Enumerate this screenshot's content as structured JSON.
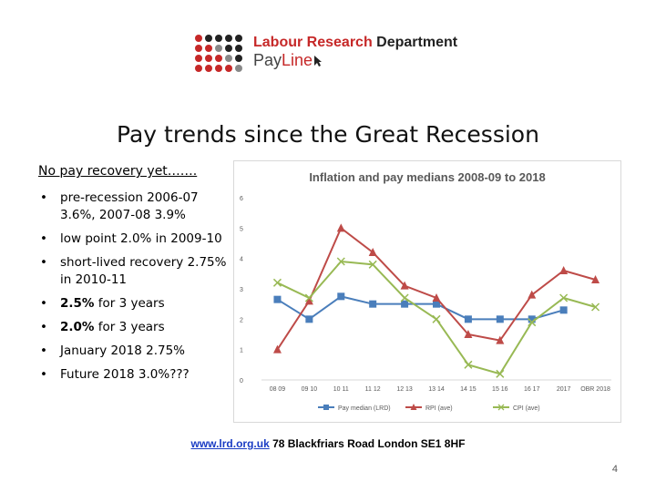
{
  "logo": {
    "name_part1": "Labour Research",
    "name_part2": "Department",
    "product_pay": "Pay",
    "product_line": "Line",
    "dot_colors": [
      "#c62828",
      "#222222",
      "#888888"
    ]
  },
  "slide": {
    "title": "Pay trends since the Great Recession",
    "subtitle": "No pay recovery yet…….",
    "bullets": [
      {
        "bold": "",
        "text": "pre-recession 2006-07 3.6%, 2007-08 3.9%"
      },
      {
        "bold": "",
        "text": "low point 2.0% in 2009-10"
      },
      {
        "bold": "",
        "text": "short-lived recovery 2.75% in 2010-11"
      },
      {
        "bold": "2.5%",
        "text": " for 3 years"
      },
      {
        "bold": "2.0%",
        "text": " for 3 years"
      },
      {
        "bold": "",
        "text": "January 2018 2.75%"
      },
      {
        "bold": "",
        "text": "Future 2018 3.0%???"
      }
    ],
    "footer_link": "www.lrd.org.uk",
    "footer_address": " 78 Blackfriars Road London SE1 8HF",
    "page_number": "4"
  },
  "chart_data": {
    "type": "line",
    "title": "Inflation and pay medians 2008-09 to 2018",
    "xlabel": "",
    "ylabel": "",
    "categories": [
      "08 09",
      "09 10",
      "10 11",
      "11 12",
      "12 13",
      "13 14",
      "14 15",
      "15 16",
      "16 17",
      "2017",
      "OBR 2018"
    ],
    "ylim": [
      0,
      6
    ],
    "yticks": [
      0,
      1,
      2,
      3,
      4,
      5,
      6
    ],
    "grid": false,
    "legend_position": "bottom",
    "series": [
      {
        "name": "Pay median (LRD)",
        "color": "#4a7ebb",
        "marker": "square",
        "values": [
          2.65,
          2.0,
          2.75,
          2.5,
          2.5,
          2.5,
          2.0,
          2.0,
          2.0,
          2.3,
          null
        ]
      },
      {
        "name": "RPI (ave)",
        "color": "#be4b48",
        "marker": "triangle",
        "values": [
          1.0,
          2.6,
          5.0,
          4.2,
          3.1,
          2.7,
          1.5,
          1.3,
          2.8,
          3.6,
          3.3
        ]
      },
      {
        "name": "CPI (ave)",
        "color": "#98b954",
        "marker": "x",
        "values": [
          3.2,
          2.7,
          3.9,
          3.8,
          2.7,
          2.0,
          0.5,
          0.2,
          1.9,
          2.7,
          2.4
        ]
      }
    ]
  }
}
